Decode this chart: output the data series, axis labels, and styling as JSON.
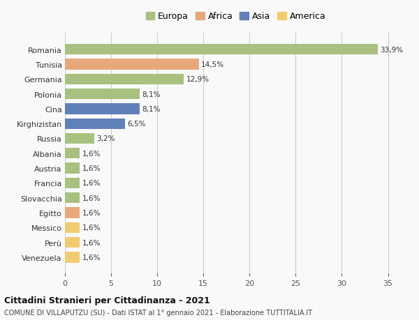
{
  "categories": [
    "Romania",
    "Tunisia",
    "Germania",
    "Polonia",
    "Cina",
    "Kirghizistan",
    "Russia",
    "Albania",
    "Austria",
    "Francia",
    "Slovacchia",
    "Egitto",
    "Messico",
    "Perù",
    "Venezuela"
  ],
  "values": [
    33.9,
    14.5,
    12.9,
    8.1,
    8.1,
    6.5,
    3.2,
    1.6,
    1.6,
    1.6,
    1.6,
    1.6,
    1.6,
    1.6,
    1.6
  ],
  "continents": [
    "Europa",
    "Africa",
    "Europa",
    "Europa",
    "Asia",
    "Asia",
    "Europa",
    "Europa",
    "Europa",
    "Europa",
    "Europa",
    "Africa",
    "America",
    "America",
    "America"
  ],
  "continent_colors": {
    "Europa": "#a8c080",
    "Africa": "#e8a87c",
    "Asia": "#6080b8",
    "America": "#f0cc70"
  },
  "legend_order": [
    "Europa",
    "Africa",
    "Asia",
    "America"
  ],
  "labels": [
    "33,9%",
    "14,5%",
    "12,9%",
    "8,1%",
    "8,1%",
    "6,5%",
    "3,2%",
    "1,6%",
    "1,6%",
    "1,6%",
    "1,6%",
    "1,6%",
    "1,6%",
    "1,6%",
    "1,6%"
  ],
  "xlim": [
    0,
    37
  ],
  "xticks": [
    0,
    5,
    10,
    15,
    20,
    25,
    30,
    35
  ],
  "title": "Cittadini Stranieri per Cittadinanza - 2021",
  "subtitle": "COMUNE DI VILLAPUTZU (SU) - Dati ISTAT al 1° gennaio 2021 - Elaborazione TUTTITALIA.IT",
  "background_color": "#f9f9f9",
  "grid_color": "#cccccc"
}
